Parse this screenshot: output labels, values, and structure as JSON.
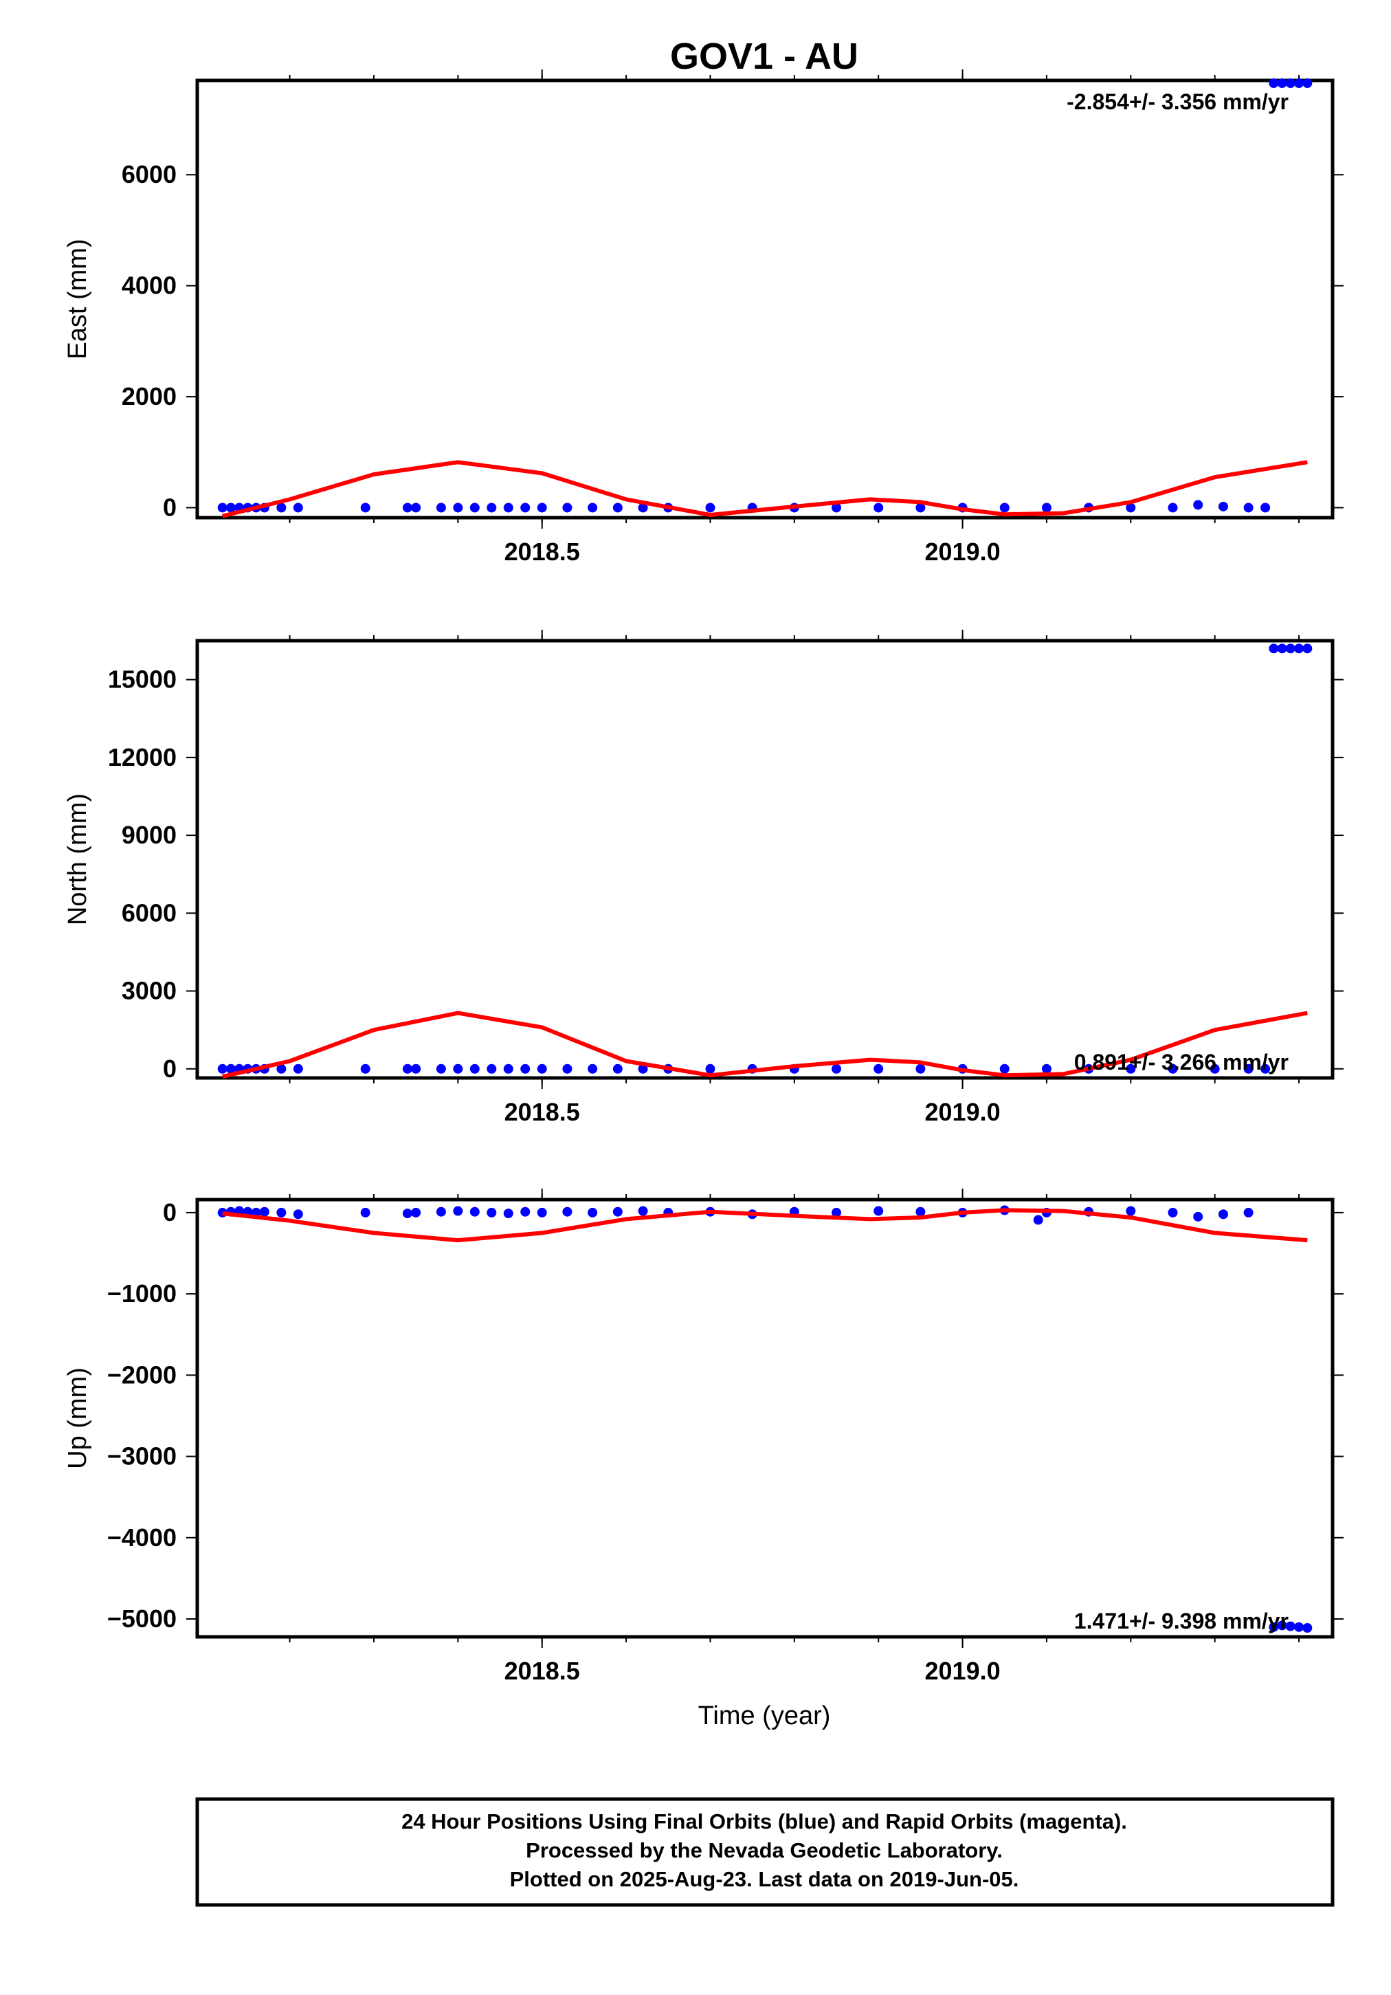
{
  "chart_data": {
    "title": "GOV1 - AU",
    "type": "scatter",
    "xlabel": "Time (year)",
    "x_ticks": [
      "2018.5",
      "2019.0"
    ],
    "xlim": [
      2018.09,
      2019.44
    ],
    "colors": {
      "data": "#0000ff",
      "model": "#ff0000",
      "axes": "#000000"
    },
    "panels": [
      {
        "component": "East",
        "ylabel": "East (mm)",
        "ylim": [
          -180,
          7700
        ],
        "y_ticks": [
          "0",
          "2000",
          "4000",
          "6000"
        ],
        "y_tick_values": [
          0,
          2000,
          4000,
          6000
        ],
        "rate_label": "-2.854+/- 3.356 mm/yr",
        "rate_position": "top-right",
        "series": [
          {
            "name": "Final Orbits",
            "style": "dots",
            "x": [
              2018.12,
              2018.13,
              2018.14,
              2018.15,
              2018.16,
              2018.17,
              2018.19,
              2018.21,
              2018.29,
              2018.34,
              2018.35,
              2018.38,
              2018.4,
              2018.42,
              2018.44,
              2018.46,
              2018.48,
              2018.5,
              2018.53,
              2018.56,
              2018.59,
              2018.62,
              2018.65,
              2018.7,
              2018.75,
              2018.8,
              2018.85,
              2018.9,
              2018.95,
              2019.0,
              2019.05,
              2019.1,
              2019.15,
              2019.2,
              2019.25,
              2019.28,
              2019.31,
              2019.34,
              2019.36,
              2019.37,
              2019.38,
              2019.39,
              2019.4,
              2019.41
            ],
            "y": [
              0,
              0,
              0,
              0,
              0,
              0,
              0,
              0,
              0,
              0,
              0,
              0,
              0,
              0,
              0,
              0,
              0,
              0,
              0,
              0,
              0,
              0,
              0,
              0,
              0,
              0,
              0,
              0,
              0,
              0,
              0,
              0,
              0,
              0,
              0,
              50,
              20,
              0,
              0,
              7650,
              7650,
              7650,
              7650,
              7650
            ]
          },
          {
            "name": "Model fit",
            "style": "line",
            "x": [
              2018.12,
              2018.2,
              2018.3,
              2018.4,
              2018.5,
              2018.6,
              2018.7,
              2018.8,
              2018.89,
              2018.95,
              2019.0,
              2019.05,
              2019.12,
              2019.2,
              2019.3,
              2019.41
            ],
            "y": [
              -150,
              150,
              600,
              820,
              620,
              150,
              -130,
              20,
              150,
              100,
              -30,
              -120,
              -100,
              100,
              550,
              820
            ]
          }
        ]
      },
      {
        "component": "North",
        "ylabel": "North (mm)",
        "ylim": [
          -350,
          16500
        ],
        "y_ticks": [
          "0",
          "3000",
          "6000",
          "9000",
          "12000",
          "15000"
        ],
        "y_tick_values": [
          0,
          3000,
          6000,
          9000,
          12000,
          15000
        ],
        "rate_label": "0.891+/- 3.266 mm/yr",
        "rate_position": "bottom-right",
        "series": [
          {
            "name": "Final Orbits",
            "style": "dots",
            "x": [
              2018.12,
              2018.13,
              2018.14,
              2018.15,
              2018.16,
              2018.17,
              2018.19,
              2018.21,
              2018.29,
              2018.34,
              2018.35,
              2018.38,
              2018.4,
              2018.42,
              2018.44,
              2018.46,
              2018.48,
              2018.5,
              2018.53,
              2018.56,
              2018.59,
              2018.62,
              2018.65,
              2018.7,
              2018.75,
              2018.8,
              2018.85,
              2018.9,
              2018.95,
              2019.0,
              2019.05,
              2019.1,
              2019.15,
              2019.2,
              2019.25,
              2019.3,
              2019.34,
              2019.36,
              2019.37,
              2019.38,
              2019.39,
              2019.4,
              2019.41
            ],
            "y": [
              0,
              0,
              0,
              0,
              0,
              0,
              0,
              0,
              0,
              0,
              0,
              0,
              0,
              0,
              0,
              0,
              0,
              0,
              0,
              0,
              0,
              0,
              0,
              0,
              0,
              0,
              0,
              0,
              0,
              0,
              0,
              0,
              0,
              0,
              0,
              0,
              0,
              0,
              16200,
              16200,
              16200,
              16200,
              16200
            ]
          },
          {
            "name": "Model fit",
            "style": "line",
            "x": [
              2018.12,
              2018.2,
              2018.3,
              2018.4,
              2018.5,
              2018.6,
              2018.7,
              2018.8,
              2018.89,
              2018.95,
              2019.0,
              2019.05,
              2019.12,
              2019.2,
              2019.3,
              2019.41
            ],
            "y": [
              -300,
              300,
              1500,
              2150,
              1600,
              300,
              -250,
              100,
              350,
              250,
              -50,
              -250,
              -200,
              350,
              1500,
              2150
            ]
          }
        ]
      },
      {
        "component": "Up",
        "ylabel": "Up (mm)",
        "ylim": [
          -5220,
          160
        ],
        "y_ticks": [
          "0",
          "−1000",
          "−2000",
          "−3000",
          "−4000",
          "−5000"
        ],
        "y_tick_values": [
          0,
          -1000,
          -2000,
          -3000,
          -4000,
          -5000
        ],
        "rate_label": "1.471+/- 9.398 mm/yr",
        "rate_position": "bottom-right",
        "series": [
          {
            "name": "Final Orbits",
            "style": "dots",
            "x": [
              2018.12,
              2018.13,
              2018.14,
              2018.15,
              2018.16,
              2018.17,
              2018.19,
              2018.21,
              2018.29,
              2018.34,
              2018.35,
              2018.38,
              2018.4,
              2018.42,
              2018.44,
              2018.46,
              2018.48,
              2018.5,
              2018.53,
              2018.56,
              2018.59,
              2018.62,
              2018.65,
              2018.7,
              2018.75,
              2018.8,
              2018.85,
              2018.9,
              2018.95,
              2019.0,
              2019.05,
              2019.09,
              2019.1,
              2019.15,
              2019.2,
              2019.25,
              2019.28,
              2019.31,
              2019.34,
              2019.37,
              2019.38,
              2019.39,
              2019.4,
              2019.41
            ],
            "y": [
              0,
              10,
              20,
              10,
              0,
              10,
              0,
              -20,
              0,
              -10,
              0,
              10,
              20,
              10,
              0,
              -10,
              10,
              0,
              10,
              0,
              10,
              20,
              0,
              10,
              -20,
              10,
              0,
              20,
              10,
              0,
              30,
              -90,
              0,
              10,
              20,
              0,
              -50,
              -20,
              0,
              -5100,
              -5080,
              -5090,
              -5100,
              -5110
            ]
          },
          {
            "name": "Model fit",
            "style": "line",
            "x": [
              2018.12,
              2018.2,
              2018.3,
              2018.4,
              2018.5,
              2018.6,
              2018.7,
              2018.8,
              2018.89,
              2018.95,
              2019.0,
              2019.05,
              2019.12,
              2019.2,
              2019.3,
              2019.41
            ],
            "y": [
              -10,
              -100,
              -250,
              -340,
              -250,
              -80,
              10,
              -40,
              -80,
              -60,
              0,
              30,
              20,
              -60,
              -250,
              -340
            ]
          }
        ]
      }
    ]
  },
  "footer": {
    "line1": "24 Hour Positions Using Final Orbits (blue) and Rapid Orbits (magenta).",
    "line2": "Processed by the Nevada Geodetic Laboratory.",
    "line3": "Plotted on 2025-Aug-23. Last data on 2019-Jun-05."
  }
}
